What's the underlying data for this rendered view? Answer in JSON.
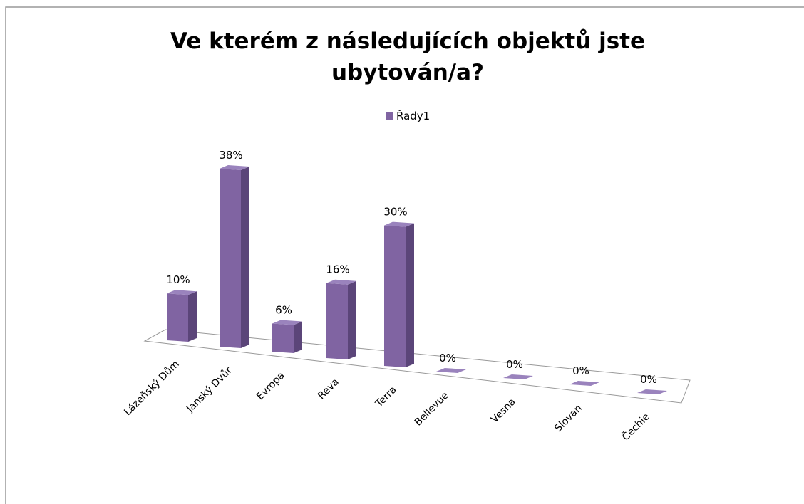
{
  "chart_data": {
    "type": "bar3d",
    "title": [
      "Ve kterém z následujících objektů jste",
      "ubytován/a?"
    ],
    "legend": "Řady1",
    "series": [
      {
        "name": "Řady1",
        "color": "#8064a2",
        "values": [
          10,
          38,
          6,
          16,
          30,
          0,
          0,
          0,
          0
        ],
        "value_labels": [
          "10%",
          "38%",
          "6%",
          "16%",
          "30%",
          "0%",
          "0%",
          "0%",
          "0%"
        ]
      }
    ],
    "categories": [
      "Lázeňský Dům",
      "Janský Dvůr",
      "Evropa",
      "Réva",
      "Terra",
      "Bellevue",
      "Vesna",
      "Slovan",
      "Čechie"
    ]
  }
}
